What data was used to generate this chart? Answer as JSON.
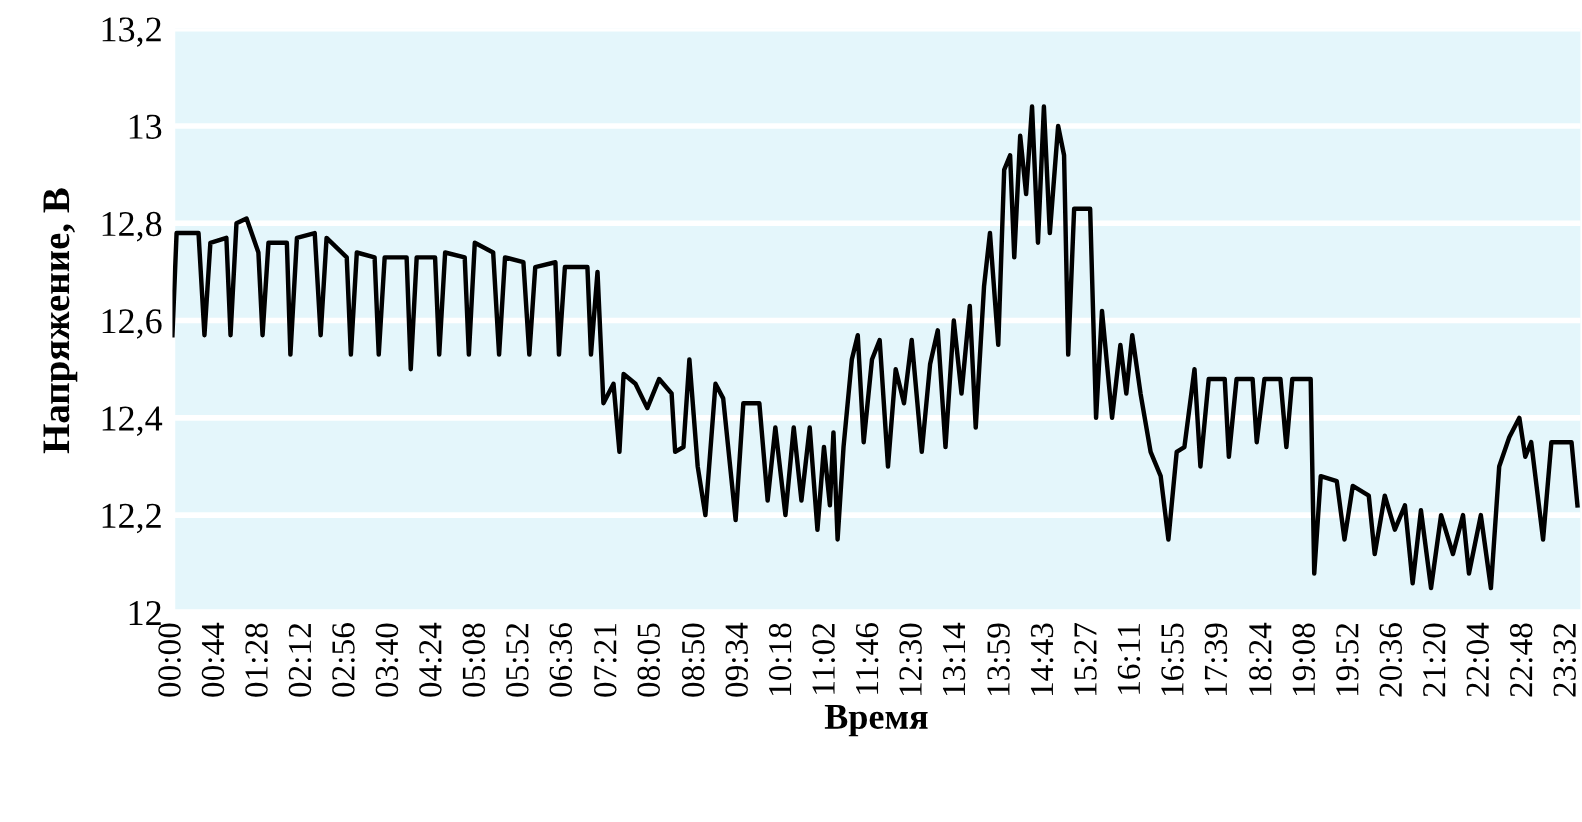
{
  "chart_data": {
    "type": "line",
    "xlabel": "Время",
    "ylabel": "Напряжение, В",
    "ylim": [
      12,
      13.2
    ],
    "yticks": [
      {
        "value": 12,
        "label": "12"
      },
      {
        "value": 12.2,
        "label": "12,2"
      },
      {
        "value": 12.4,
        "label": "12,4"
      },
      {
        "value": 12.6,
        "label": "12,6"
      },
      {
        "value": 12.8,
        "label": "12,8"
      },
      {
        "value": 13,
        "label": "13"
      },
      {
        "value": 13.2,
        "label": "13,2"
      }
    ],
    "xlim": [
      0,
      23.75
    ],
    "xticks": [
      {
        "value": 0,
        "label": "00:00"
      },
      {
        "value": 0.733,
        "label": "00:44"
      },
      {
        "value": 1.467,
        "label": "01:28"
      },
      {
        "value": 2.2,
        "label": "02:12"
      },
      {
        "value": 2.933,
        "label": "02:56"
      },
      {
        "value": 3.667,
        "label": "03:40"
      },
      {
        "value": 4.4,
        "label": "04:24"
      },
      {
        "value": 5.133,
        "label": "05:08"
      },
      {
        "value": 5.867,
        "label": "05:52"
      },
      {
        "value": 6.6,
        "label": "06:36"
      },
      {
        "value": 7.35,
        "label": "07:21"
      },
      {
        "value": 8.083,
        "label": "08:05"
      },
      {
        "value": 8.833,
        "label": "08:50"
      },
      {
        "value": 9.567,
        "label": "09:34"
      },
      {
        "value": 10.3,
        "label": "10:18"
      },
      {
        "value": 11.033,
        "label": "11:02"
      },
      {
        "value": 11.767,
        "label": "11:46"
      },
      {
        "value": 12.5,
        "label": "12:30"
      },
      {
        "value": 13.233,
        "label": "13:14"
      },
      {
        "value": 13.983,
        "label": "13:59"
      },
      {
        "value": 14.717,
        "label": "14:43"
      },
      {
        "value": 15.45,
        "label": "15:27"
      },
      {
        "value": 16.183,
        "label": "16:11"
      },
      {
        "value": 16.917,
        "label": "16:55"
      },
      {
        "value": 17.65,
        "label": "17:39"
      },
      {
        "value": 18.4,
        "label": "18:24"
      },
      {
        "value": 19.133,
        "label": "19:08"
      },
      {
        "value": 19.867,
        "label": "19:52"
      },
      {
        "value": 20.6,
        "label": "20:36"
      },
      {
        "value": 21.333,
        "label": "21:20"
      },
      {
        "value": 22.067,
        "label": "22:04"
      },
      {
        "value": 22.8,
        "label": "22:48"
      },
      {
        "value": 23.533,
        "label": "23:32"
      }
    ],
    "grid": "y",
    "legend": false,
    "marker": "none",
    "line_style": "solid",
    "series": [
      {
        "color": "#000000",
        "x": [
          0.0,
          0.07,
          0.44,
          0.54,
          0.64,
          0.91,
          0.98,
          1.08,
          1.25,
          1.45,
          1.52,
          1.62,
          1.93,
          1.99,
          2.1,
          2.4,
          2.5,
          2.6,
          2.94,
          3.01,
          3.11,
          3.41,
          3.48,
          3.58,
          3.95,
          4.02,
          4.12,
          4.43,
          4.5,
          4.6,
          4.93,
          5.0,
          5.1,
          5.41,
          5.51,
          5.61,
          5.92,
          6.02,
          6.12,
          6.46,
          6.52,
          6.62,
          7.0,
          7.06,
          7.17,
          7.27,
          7.44,
          7.54,
          7.61,
          7.81,
          8.01,
          8.21,
          8.42,
          8.48,
          8.62,
          8.72,
          8.86,
          8.99,
          9.16,
          9.29,
          9.5,
          9.63,
          9.9,
          10.04,
          10.17,
          10.34,
          10.48,
          10.61,
          10.75,
          10.88,
          10.99,
          11.09,
          11.15,
          11.22,
          11.32,
          11.46,
          11.56,
          11.66,
          11.8,
          11.93,
          12.07,
          12.2,
          12.34,
          12.47,
          12.64,
          12.78,
          12.91,
          13.04,
          13.18,
          13.31,
          13.45,
          13.55,
          13.69,
          13.79,
          13.93,
          14.03,
          14.13,
          14.2,
          14.3,
          14.4,
          14.5,
          14.6,
          14.7,
          14.8,
          14.94,
          15.04,
          15.11,
          15.21,
          15.48,
          15.58,
          15.68,
          15.85,
          15.99,
          16.09,
          16.19,
          16.33,
          16.5,
          16.67,
          16.8,
          16.94,
          17.07,
          17.24,
          17.34,
          17.48,
          17.75,
          17.82,
          17.95,
          18.22,
          18.29,
          18.42,
          18.69,
          18.79,
          18.89,
          19.2,
          19.26,
          19.37,
          19.64,
          19.77,
          19.91,
          20.18,
          20.28,
          20.45,
          20.62,
          20.79,
          20.92,
          21.06,
          21.23,
          21.4,
          21.6,
          21.77,
          21.87,
          22.07,
          22.24,
          22.38,
          22.55,
          22.72,
          22.82,
          22.92,
          23.12,
          23.26,
          23.6,
          23.7
        ],
        "values": [
          12.57,
          12.78,
          12.78,
          12.57,
          12.76,
          12.77,
          12.57,
          12.8,
          12.81,
          12.74,
          12.57,
          12.76,
          12.76,
          12.53,
          12.77,
          12.78,
          12.57,
          12.77,
          12.73,
          12.53,
          12.74,
          12.73,
          12.53,
          12.73,
          12.73,
          12.5,
          12.73,
          12.73,
          12.53,
          12.74,
          12.73,
          12.53,
          12.76,
          12.74,
          12.53,
          12.73,
          12.72,
          12.53,
          12.71,
          12.72,
          12.53,
          12.71,
          12.71,
          12.53,
          12.7,
          12.43,
          12.47,
          12.33,
          12.49,
          12.47,
          12.42,
          12.48,
          12.45,
          12.33,
          12.34,
          12.52,
          12.3,
          12.2,
          12.47,
          12.44,
          12.19,
          12.43,
          12.43,
          12.23,
          12.38,
          12.2,
          12.38,
          12.23,
          12.38,
          12.17,
          12.34,
          12.22,
          12.37,
          12.15,
          12.34,
          12.52,
          12.57,
          12.35,
          12.52,
          12.56,
          12.3,
          12.5,
          12.43,
          12.56,
          12.33,
          12.51,
          12.58,
          12.34,
          12.6,
          12.45,
          12.63,
          12.38,
          12.67,
          12.78,
          12.55,
          12.91,
          12.94,
          12.73,
          12.98,
          12.86,
          13.04,
          12.76,
          13.04,
          12.78,
          13.0,
          12.94,
          12.53,
          12.83,
          12.83,
          12.4,
          12.62,
          12.4,
          12.55,
          12.45,
          12.57,
          12.45,
          12.33,
          12.28,
          12.15,
          12.33,
          12.34,
          12.5,
          12.3,
          12.48,
          12.48,
          12.32,
          12.48,
          12.48,
          12.35,
          12.48,
          12.48,
          12.34,
          12.48,
          12.48,
          12.08,
          12.28,
          12.27,
          12.15,
          12.26,
          12.24,
          12.12,
          12.24,
          12.17,
          12.22,
          12.06,
          12.21,
          12.05,
          12.2,
          12.12,
          12.2,
          12.08,
          12.2,
          12.05,
          12.3,
          12.36,
          12.4,
          12.32,
          12.35,
          12.15,
          12.35,
          12.35,
          12.22
        ]
      }
    ]
  }
}
